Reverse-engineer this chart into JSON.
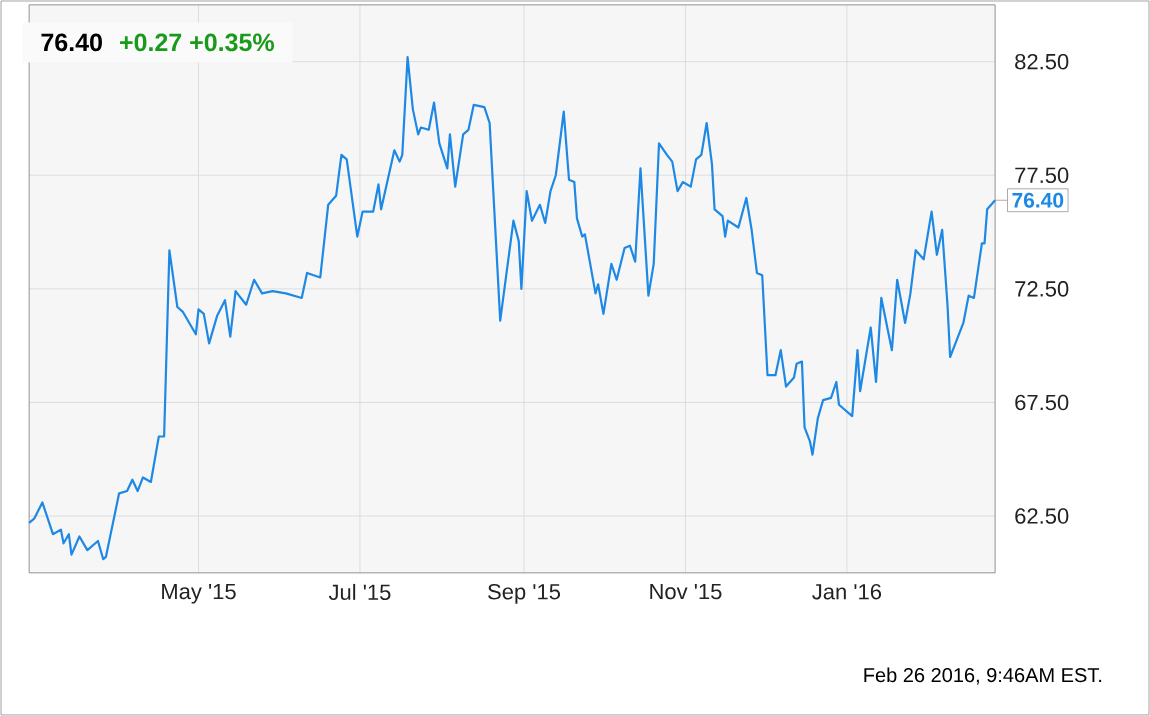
{
  "chart_data": {
    "type": "line",
    "title": "76.40",
    "subtitle": "+0.27 +0.35%",
    "x": [
      "2015-02-26",
      "2015-02-28",
      "2015-03-03",
      "2015-03-05",
      "2015-03-07",
      "2015-03-10",
      "2015-03-11",
      "2015-03-13",
      "2015-03-14",
      "2015-03-17",
      "2015-03-20",
      "2015-03-24",
      "2015-03-26",
      "2015-03-27",
      "2015-04-01",
      "2015-04-04",
      "2015-04-06",
      "2015-04-08",
      "2015-04-10",
      "2015-04-13",
      "2015-04-16",
      "2015-04-18",
      "2015-04-20",
      "2015-04-23",
      "2015-04-25",
      "2015-04-30",
      "2015-05-01",
      "2015-05-03",
      "2015-05-05",
      "2015-05-08",
      "2015-05-11",
      "2015-05-13",
      "2015-05-15",
      "2015-05-19",
      "2015-05-22",
      "2015-05-25",
      "2015-05-29",
      "2015-06-03",
      "2015-06-09",
      "2015-06-11",
      "2015-06-16",
      "2015-06-19",
      "2015-06-22",
      "2015-06-24",
      "2015-06-26",
      "2015-06-30",
      "2015-07-02",
      "2015-07-06",
      "2015-07-08",
      "2015-07-09",
      "2015-07-14",
      "2015-07-16",
      "2015-07-17",
      "2015-07-19",
      "2015-07-21",
      "2015-07-23",
      "2015-07-24",
      "2015-07-27",
      "2015-07-29",
      "2015-07-31",
      "2015-08-03",
      "2015-08-04",
      "2015-08-06",
      "2015-08-09",
      "2015-08-11",
      "2015-08-13",
      "2015-08-17",
      "2015-08-19",
      "2015-08-23",
      "2015-08-28",
      "2015-08-30",
      "2015-08-31",
      "2015-09-02",
      "2015-09-04",
      "2015-09-07",
      "2015-09-09",
      "2015-09-11",
      "2015-09-13",
      "2015-09-16",
      "2015-09-18",
      "2015-09-20",
      "2015-09-21",
      "2015-09-23",
      "2015-09-24",
      "2015-09-28",
      "2015-09-29",
      "2015-10-01",
      "2015-10-04",
      "2015-10-06",
      "2015-10-09",
      "2015-10-11",
      "2015-10-13",
      "2015-10-15",
      "2015-10-18",
      "2015-10-20",
      "2015-10-22",
      "2015-10-25",
      "2015-10-27",
      "2015-10-29",
      "2015-10-31",
      "2015-11-03",
      "2015-11-05",
      "2015-11-07",
      "2015-11-09",
      "2015-11-11",
      "2015-11-12",
      "2015-11-15",
      "2015-11-16",
      "2015-11-17",
      "2015-11-21",
      "2015-11-24",
      "2015-11-26",
      "2015-11-28",
      "2015-11-30",
      "2015-12-02",
      "2015-12-05",
      "2015-12-07",
      "2015-12-09",
      "2015-12-12",
      "2015-12-13",
      "2015-12-15",
      "2015-12-16",
      "2015-12-18",
      "2015-12-19",
      "2015-12-21",
      "2015-12-23",
      "2015-12-26",
      "2015-12-28",
      "2015-12-29",
      "2016-01-03",
      "2016-01-05",
      "2016-01-06",
      "2016-01-10",
      "2016-01-12",
      "2016-01-14",
      "2016-01-18",
      "2016-01-20",
      "2016-01-23",
      "2016-01-25",
      "2016-01-27",
      "2016-01-30",
      "2016-02-02",
      "2016-02-04",
      "2016-02-06",
      "2016-02-08",
      "2016-02-09",
      "2016-02-11",
      "2016-02-14",
      "2016-02-16",
      "2016-02-18",
      "2016-02-21",
      "2016-02-22",
      "2016-02-23",
      "2016-02-26"
    ],
    "series": [
      {
        "color": "#1e88e5",
        "values": [
          62.2,
          62.4,
          63.1,
          62.4,
          61.7,
          61.9,
          61.3,
          61.7,
          60.8,
          61.6,
          61.0,
          61.4,
          60.6,
          60.7,
          63.5,
          63.6,
          64.1,
          63.6,
          64.2,
          64.0,
          66.0,
          66.0,
          74.2,
          71.7,
          71.5,
          70.5,
          71.6,
          71.4,
          70.1,
          71.3,
          72.0,
          70.4,
          72.4,
          71.8,
          72.9,
          72.3,
          72.4,
          72.3,
          72.1,
          73.2,
          73.0,
          76.2,
          76.6,
          78.4,
          78.2,
          74.8,
          75.9,
          75.9,
          77.1,
          76.0,
          78.6,
          78.1,
          78.4,
          82.7,
          80.4,
          79.3,
          79.6,
          79.5,
          80.7,
          78.9,
          77.8,
          79.3,
          77.0,
          79.3,
          79.5,
          80.6,
          80.5,
          79.8,
          71.1,
          75.5,
          74.6,
          72.5,
          76.8,
          75.5,
          76.2,
          75.4,
          76.8,
          77.5,
          80.3,
          77.3,
          77.2,
          75.6,
          74.8,
          74.9,
          72.3,
          72.7,
          71.4,
          73.6,
          72.9,
          74.3,
          74.4,
          73.7,
          77.8,
          72.2,
          73.6,
          78.9,
          78.4,
          78.1,
          76.8,
          77.2,
          77.0,
          78.2,
          78.4,
          79.8,
          78.0,
          76.0,
          75.7,
          74.8,
          75.5,
          75.2,
          76.5,
          75.1,
          73.2,
          73.1,
          68.7,
          68.7,
          69.8,
          68.2,
          68.6,
          69.2,
          69.3,
          66.4,
          65.8,
          65.2,
          66.8,
          67.6,
          67.7,
          68.4,
          67.4,
          66.9,
          69.8,
          68.0,
          70.8,
          68.4,
          72.1,
          69.8,
          72.9,
          71.0,
          72.3,
          74.2,
          73.8,
          75.9,
          74.0,
          75.1,
          71.8,
          69.5,
          70.1,
          71.0,
          72.2,
          72.1,
          74.5,
          74.5,
          76.0,
          76.4
        ]
      }
    ],
    "xlim": [
      "2015-02-26",
      "2016-02-26"
    ],
    "xticks": [
      {
        "value": "2015-05-01",
        "label": "May '15"
      },
      {
        "value": "2015-07-01",
        "label": "Jul '15"
      },
      {
        "value": "2015-09-01",
        "label": "Sep '15"
      },
      {
        "value": "2015-11-01",
        "label": "Nov '15"
      },
      {
        "value": "2016-01-01",
        "label": "Jan '16"
      }
    ],
    "ylim": [
      60,
      85
    ],
    "yticks": [
      {
        "value": 62.5,
        "label": "62.50"
      },
      {
        "value": 67.5,
        "label": "67.50"
      },
      {
        "value": 72.5,
        "label": "72.50"
      },
      {
        "value": 77.5,
        "label": "77.50"
      },
      {
        "value": 82.5,
        "label": "82.50"
      }
    ],
    "grid": true,
    "annotations": [
      {
        "text": "76.40",
        "x": "2016-02-26",
        "y": 76.4
      },
      "Feb 26 2016, 9:46AM EST."
    ]
  }
}
